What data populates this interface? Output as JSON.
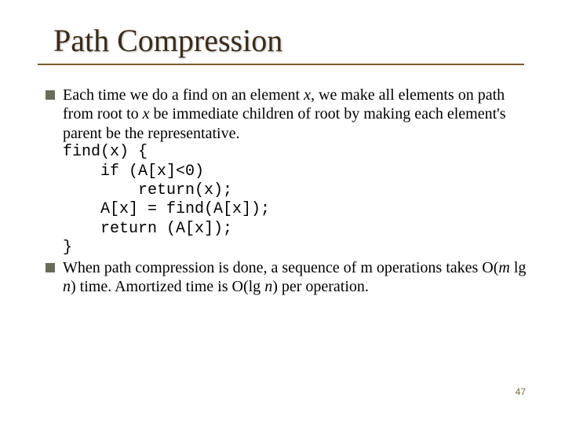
{
  "slide": {
    "title": "Path Compression",
    "title_color": "#3b2c1a",
    "rule_color": "#7a5c2e",
    "background_color": "#ffffff",
    "body_font": "Times New Roman",
    "code_font": "Courier New",
    "body_fontsize": 20,
    "title_fontsize": 40,
    "bullet_color": "#6b6b5a",
    "page_number": "47",
    "page_number_color": "#806640",
    "bullets": [
      {
        "pre": "Each time we do a find on an element ",
        "var1": "x",
        "mid1": ", we make all elements on path from root to ",
        "var2": "x",
        "post": " be immediate children of root by making each element's parent be the representative."
      },
      {
        "pre": "When path compression is done, a sequence of m operations takes O(",
        "var1": "m",
        "mid1": " lg ",
        "var2": "n",
        "mid2": ") time. Amortized time is O(lg ",
        "var3": "n",
        "post": ") per operation."
      }
    ],
    "code": {
      "l1": "find(x) {",
      "l2": "    if (A[x]<0)",
      "l3": "        return(x);",
      "l4": "    A[x] = find(A[x]);",
      "l5": "    return (A[x]);",
      "l6": "}"
    }
  }
}
